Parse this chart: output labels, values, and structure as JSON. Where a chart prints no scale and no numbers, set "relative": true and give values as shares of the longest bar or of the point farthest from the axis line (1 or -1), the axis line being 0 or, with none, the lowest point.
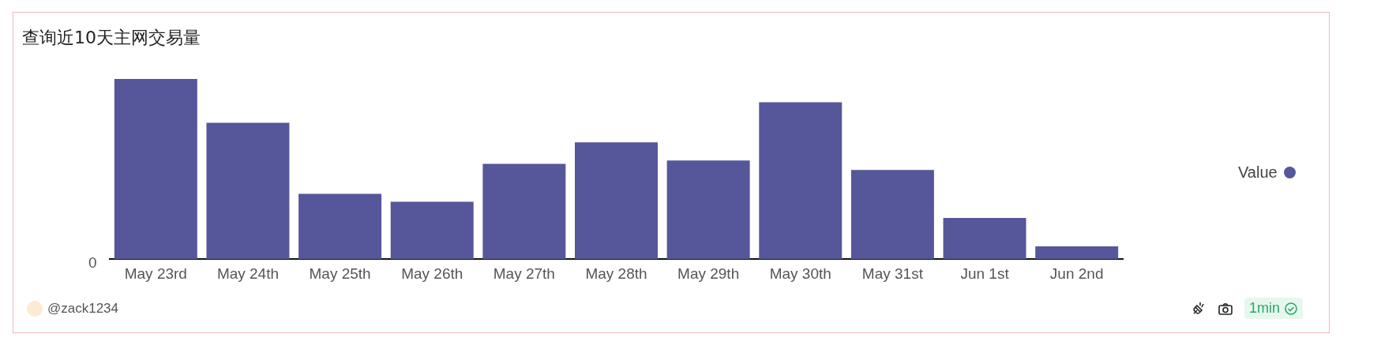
{
  "chart_data": {
    "type": "bar",
    "title": "查询近10天主网交易量",
    "relative": true,
    "legend": "right",
    "categories": [
      "May 23rd",
      "May 24th",
      "May 25th",
      "May 26th",
      "May 27th",
      "May 28th",
      "May 29th",
      "May 30th",
      "May 31st",
      "Jun 1st",
      "Jun 2nd"
    ],
    "series": [
      {
        "name": "Value",
        "color": "#55579a",
        "values": [
          1,
          0.757,
          0.362,
          0.319,
          0.529,
          0.648,
          0.548,
          0.871,
          0.495,
          0.229,
          0.071
        ]
      }
    ],
    "annotations": [
      "0",
      "@zack1234",
      "1min"
    ]
  }
}
